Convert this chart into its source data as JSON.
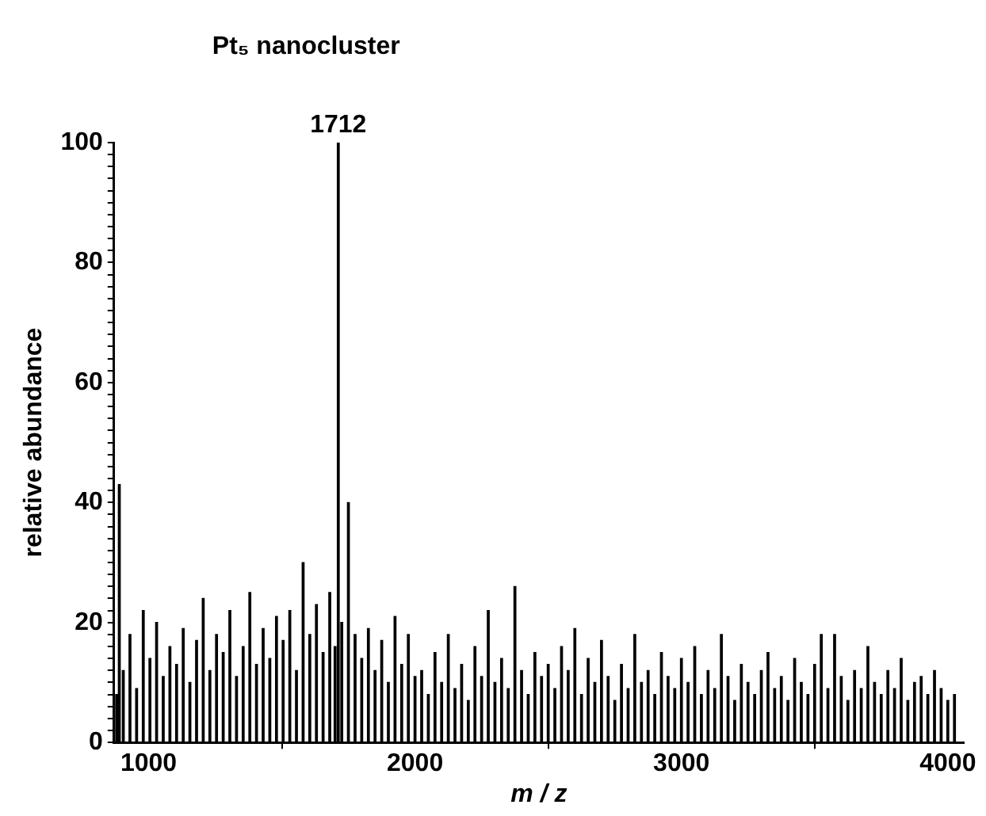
{
  "chart_data": {
    "type": "bar",
    "title": "Pt₅ nanocluster",
    "xlabel": "m / z",
    "ylabel": "relative abundance",
    "x": [
      880,
      890,
      905,
      930,
      955,
      980,
      1005,
      1030,
      1055,
      1080,
      1105,
      1130,
      1155,
      1180,
      1205,
      1230,
      1255,
      1280,
      1305,
      1330,
      1355,
      1380,
      1405,
      1430,
      1455,
      1480,
      1505,
      1530,
      1555,
      1580,
      1605,
      1630,
      1655,
      1680,
      1700,
      1712,
      1725,
      1750,
      1775,
      1800,
      1825,
      1850,
      1875,
      1900,
      1925,
      1950,
      1975,
      2000,
      2025,
      2050,
      2075,
      2100,
      2125,
      2150,
      2175,
      2200,
      2225,
      2250,
      2275,
      2300,
      2325,
      2350,
      2375,
      2400,
      2425,
      2450,
      2475,
      2500,
      2525,
      2550,
      2575,
      2600,
      2625,
      2650,
      2675,
      2700,
      2725,
      2750,
      2775,
      2800,
      2825,
      2850,
      2875,
      2900,
      2925,
      2950,
      2975,
      3000,
      3025,
      3050,
      3075,
      3100,
      3125,
      3150,
      3175,
      3200,
      3225,
      3250,
      3275,
      3300,
      3325,
      3350,
      3375,
      3400,
      3425,
      3450,
      3475,
      3500,
      3525,
      3550,
      3575,
      3600,
      3625,
      3650,
      3675,
      3700,
      3725,
      3750,
      3775,
      3800,
      3825,
      3850,
      3875,
      3900,
      3925,
      3950,
      3975,
      4000,
      4025
    ],
    "series": [
      {
        "color": "#000000",
        "values": [
          8,
          43,
          12,
          18,
          9,
          22,
          14,
          20,
          11,
          16,
          13,
          19,
          10,
          17,
          24,
          12,
          18,
          15,
          22,
          11,
          16,
          25,
          13,
          19,
          14,
          21,
          17,
          22,
          12,
          30,
          18,
          23,
          15,
          25,
          16,
          100,
          20,
          40,
          18,
          14,
          19,
          12,
          17,
          10,
          21,
          13,
          18,
          11,
          12,
          8,
          15,
          10,
          18,
          9,
          13,
          7,
          16,
          11,
          22,
          10,
          14,
          9,
          26,
          12,
          8,
          15,
          11,
          13,
          9,
          16,
          12,
          19,
          8,
          14,
          10,
          17,
          11,
          7,
          13,
          9,
          18,
          10,
          12,
          8,
          15,
          11,
          9,
          14,
          10,
          16,
          8,
          12,
          9,
          18,
          11,
          7,
          13,
          10,
          8,
          12,
          15,
          9,
          11,
          7,
          14,
          10,
          8,
          13,
          18,
          9,
          18,
          11,
          7,
          12,
          9,
          16,
          10,
          8,
          12,
          9,
          14,
          7,
          10,
          11,
          8,
          12,
          9,
          7,
          8
        ]
      }
    ],
    "annotations": [
      {
        "text": "1712",
        "x": 1712,
        "y": 100
      }
    ],
    "xlim": [
      870,
      4060
    ],
    "xticks": [
      1000,
      2000,
      3000,
      4000
    ],
    "ylim": [
      0,
      100
    ],
    "yticks": [
      0,
      {
        "value": 2,
        "label": null
      },
      {
        "value": 4,
        "label": null
      },
      {
        "value": 6,
        "label": null
      },
      {
        "value": 8,
        "label": null
      },
      {
        "value": 10,
        "label": null
      },
      {
        "value": 12,
        "label": null
      },
      {
        "value": 14,
        "label": null
      },
      {
        "value": 16,
        "label": null
      },
      {
        "value": 18,
        "label": null
      },
      20,
      {
        "value": 22,
        "label": null
      },
      {
        "value": 24,
        "label": null
      },
      {
        "value": 26,
        "label": null
      },
      {
        "value": 28,
        "label": null
      },
      {
        "value": 30,
        "label": null
      },
      {
        "value": 32,
        "label": null
      },
      {
        "value": 34,
        "label": null
      },
      {
        "value": 36,
        "label": null
      },
      {
        "value": 38,
        "label": null
      },
      40,
      {
        "value": 42,
        "label": null
      },
      {
        "value": 44,
        "label": null
      },
      {
        "value": 46,
        "label": null
      },
      {
        "value": 48,
        "label": null
      },
      {
        "value": 50,
        "label": null
      },
      {
        "value": 52,
        "label": null
      },
      {
        "value": 54,
        "label": null
      },
      {
        "value": 56,
        "label": null
      },
      {
        "value": 58,
        "label": null
      },
      60,
      {
        "value": 62,
        "label": null
      },
      {
        "value": 64,
        "label": null
      },
      {
        "value": 66,
        "label": null
      },
      {
        "value": 68,
        "label": null
      },
      {
        "value": 70,
        "label": null
      },
      {
        "value": 72,
        "label": null
      },
      {
        "value": 74,
        "label": null
      },
      {
        "value": 76,
        "label": null
      },
      {
        "value": 78,
        "label": null
      },
      80,
      {
        "value": 82,
        "label": null
      },
      {
        "value": 84,
        "label": null
      },
      {
        "value": 86,
        "label": null
      },
      {
        "value": 88,
        "label": null
      },
      {
        "value": 90,
        "label": null
      },
      {
        "value": 92,
        "label": null
      },
      {
        "value": 94,
        "label": null
      },
      {
        "value": 96,
        "label": null
      },
      {
        "value": 98,
        "label": null
      },
      100
    ],
    "grid": false,
    "legend": false
  }
}
